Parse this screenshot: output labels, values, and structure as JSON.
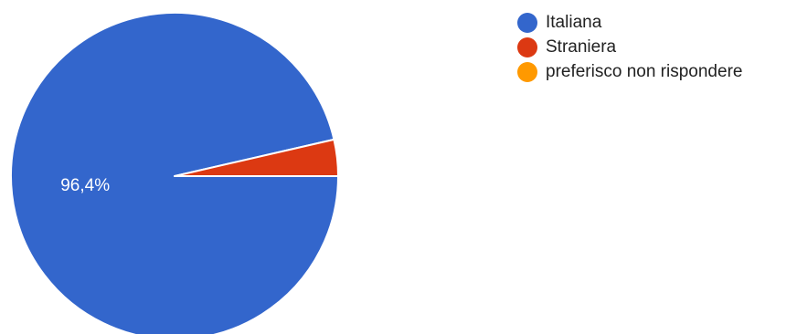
{
  "chart_data": {
    "type": "pie",
    "categories": [
      "Italiana",
      "Straniera",
      "preferisco non rispondere"
    ],
    "values": [
      96.4,
      3.6,
      0
    ],
    "colors": [
      "#3366CC",
      "#DC3912",
      "#FF9900"
    ],
    "data_labels": [
      "96,4%",
      "",
      ""
    ],
    "legend_position": "right",
    "start_angle": "3 o'clock, clockwise",
    "title": ""
  }
}
